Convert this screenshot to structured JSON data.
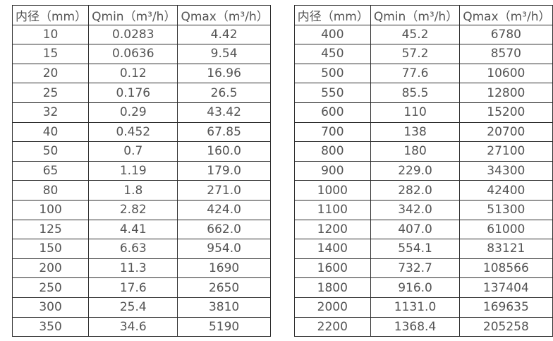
{
  "colors": {
    "background": "#ffffff",
    "border": "#2e2e2e",
    "text": "#545454"
  },
  "tables": [
    {
      "name": "small-diameter-flow-table",
      "headers": [
        "内径（mm）",
        "Qmin（m³/h）",
        "Qmax（m³/h）"
      ],
      "rows": [
        [
          "10",
          "0.0283",
          "4.42"
        ],
        [
          "15",
          "0.0636",
          "9.54"
        ],
        [
          "20",
          "0.12",
          "16.96"
        ],
        [
          "25",
          "0.176",
          "26.5"
        ],
        [
          "32",
          "0.29",
          "43.42"
        ],
        [
          "40",
          "0.452",
          "67.85"
        ],
        [
          "50",
          "0.7",
          "160.0"
        ],
        [
          "65",
          "1.19",
          "179.0"
        ],
        [
          "80",
          "1.8",
          "271.0"
        ],
        [
          "100",
          "2.82",
          "424.0"
        ],
        [
          "125",
          "4.41",
          "662.0"
        ],
        [
          "150",
          "6.63",
          "954.0"
        ],
        [
          "200",
          "11.3",
          "1690"
        ],
        [
          "250",
          "17.6",
          "2650"
        ],
        [
          "300",
          "25.4",
          "3810"
        ],
        [
          "350",
          "34.6",
          "5190"
        ]
      ]
    },
    {
      "name": "large-diameter-flow-table",
      "headers": [
        "内径（mm）",
        "Qmin（m³/h）",
        "Qmax（m³/h）"
      ],
      "rows": [
        [
          "400",
          "45.2",
          "6780"
        ],
        [
          "450",
          "57.2",
          "8570"
        ],
        [
          "500",
          "77.6",
          "10600"
        ],
        [
          "550",
          "85.5",
          "12800"
        ],
        [
          "600",
          "110",
          "15200"
        ],
        [
          "700",
          "138",
          "20700"
        ],
        [
          "800",
          "180",
          "27100"
        ],
        [
          "900",
          "229.0",
          "34300"
        ],
        [
          "1000",
          "282.0",
          "42400"
        ],
        [
          "1100",
          "342.0",
          "51300"
        ],
        [
          "1200",
          "407.0",
          "61000"
        ],
        [
          "1400",
          "554.1",
          "83121"
        ],
        [
          "1600",
          "732.7",
          "108566"
        ],
        [
          "1800",
          "916.0",
          "137404"
        ],
        [
          "2000",
          "1131.0",
          "169635"
        ],
        [
          "2200",
          "1368.4",
          "205258"
        ]
      ]
    }
  ]
}
